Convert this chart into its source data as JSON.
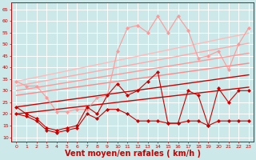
{
  "background_color": "#cce8e8",
  "grid_color": "#ffffff",
  "xlabel": "Vent moyen/en rafales ( km/h )",
  "xlabel_color": "#cc0000",
  "xlabel_fontsize": 7,
  "ylabel_ticks": [
    10,
    15,
    20,
    25,
    30,
    35,
    40,
    45,
    50,
    55,
    60,
    65
  ],
  "xticks": [
    0,
    1,
    2,
    3,
    4,
    5,
    6,
    7,
    8,
    9,
    10,
    11,
    12,
    13,
    14,
    15,
    16,
    17,
    18,
    19,
    20,
    21,
    22,
    23
  ],
  "ylim": [
    8,
    68
  ],
  "xlim": [
    -0.5,
    23.5
  ],
  "lines": [
    {
      "y": [
        34,
        32,
        32,
        27,
        21,
        21,
        22,
        22,
        27,
        28,
        47,
        57,
        58,
        55,
        62,
        55,
        62,
        56,
        44,
        45,
        47,
        39,
        50,
        57
      ],
      "color": "#ff9999",
      "lw": 0.8,
      "marker": "D",
      "ms": 2.0,
      "zorder": 4
    },
    {
      "y": [
        34,
        34.9,
        35.8,
        36.7,
        37.6,
        38.5,
        39.4,
        40.3,
        41.2,
        42.1,
        43.0,
        43.9,
        44.8,
        45.7,
        46.6,
        47.5,
        48.4,
        49.3,
        50.2,
        51.1,
        52.0,
        52.9,
        53.8,
        54.7
      ],
      "color": "#ffbbbb",
      "lw": 1.0,
      "marker": null,
      "ms": 0,
      "zorder": 2
    },
    {
      "y": [
        32,
        32.8,
        33.6,
        34.4,
        35.2,
        36.0,
        36.8,
        37.6,
        38.4,
        39.2,
        40.0,
        40.8,
        41.6,
        42.4,
        43.2,
        44.0,
        44.8,
        45.6,
        46.4,
        47.2,
        48.0,
        48.8,
        49.6,
        50.4
      ],
      "color": "#ffaaaa",
      "lw": 1.0,
      "marker": null,
      "ms": 0,
      "zorder": 2
    },
    {
      "y": [
        30,
        30.7,
        31.4,
        32.1,
        32.8,
        33.5,
        34.2,
        34.9,
        35.6,
        36.3,
        37.0,
        37.7,
        38.4,
        39.1,
        39.8,
        40.5,
        41.2,
        41.9,
        42.6,
        43.3,
        44.0,
        44.7,
        45.4,
        46.1
      ],
      "color": "#ff9999",
      "lw": 1.0,
      "marker": null,
      "ms": 0,
      "zorder": 2
    },
    {
      "y": [
        28,
        28.6,
        29.2,
        29.8,
        30.4,
        31.0,
        31.6,
        32.2,
        32.8,
        33.4,
        34.0,
        34.6,
        35.2,
        35.8,
        36.4,
        37.0,
        37.6,
        38.2,
        38.8,
        39.4,
        40.0,
        40.6,
        41.2,
        41.8
      ],
      "color": "#ff8888",
      "lw": 1.0,
      "marker": null,
      "ms": 0,
      "zorder": 2
    },
    {
      "y": [
        23,
        23.6,
        24.2,
        24.8,
        25.4,
        26.0,
        26.6,
        27.2,
        27.8,
        28.4,
        29.0,
        29.6,
        30.2,
        30.8,
        31.4,
        32.0,
        32.6,
        33.2,
        33.8,
        34.4,
        35.0,
        35.6,
        36.2,
        36.8
      ],
      "color": "#cc0000",
      "lw": 1.0,
      "marker": null,
      "ms": 0,
      "zorder": 3
    },
    {
      "y": [
        20,
        20.5,
        21.0,
        21.5,
        22.0,
        22.5,
        23.0,
        23.5,
        24.0,
        24.5,
        25.0,
        25.5,
        26.0,
        26.5,
        27.0,
        27.5,
        28.0,
        28.5,
        29.0,
        29.5,
        30.0,
        30.5,
        31.0,
        31.5
      ],
      "color": "#cc0000",
      "lw": 1.0,
      "marker": null,
      "ms": 0,
      "zorder": 3
    },
    {
      "y": [
        23,
        20,
        18,
        14,
        13,
        14,
        15,
        23,
        20,
        28,
        33,
        28,
        30,
        34,
        38,
        16,
        16,
        30,
        28,
        15,
        31,
        25,
        30,
        30
      ],
      "color": "#cc0000",
      "lw": 0.8,
      "marker": "D",
      "ms": 2.0,
      "zorder": 5
    },
    {
      "y": [
        20,
        19,
        17,
        13,
        12,
        13,
        14,
        20,
        18,
        22,
        22,
        20,
        17,
        17,
        17,
        16,
        16,
        17,
        17,
        15,
        17,
        17,
        17,
        17
      ],
      "color": "#cc0000",
      "lw": 0.8,
      "marker": "D",
      "ms": 2.0,
      "zorder": 5
    }
  ]
}
